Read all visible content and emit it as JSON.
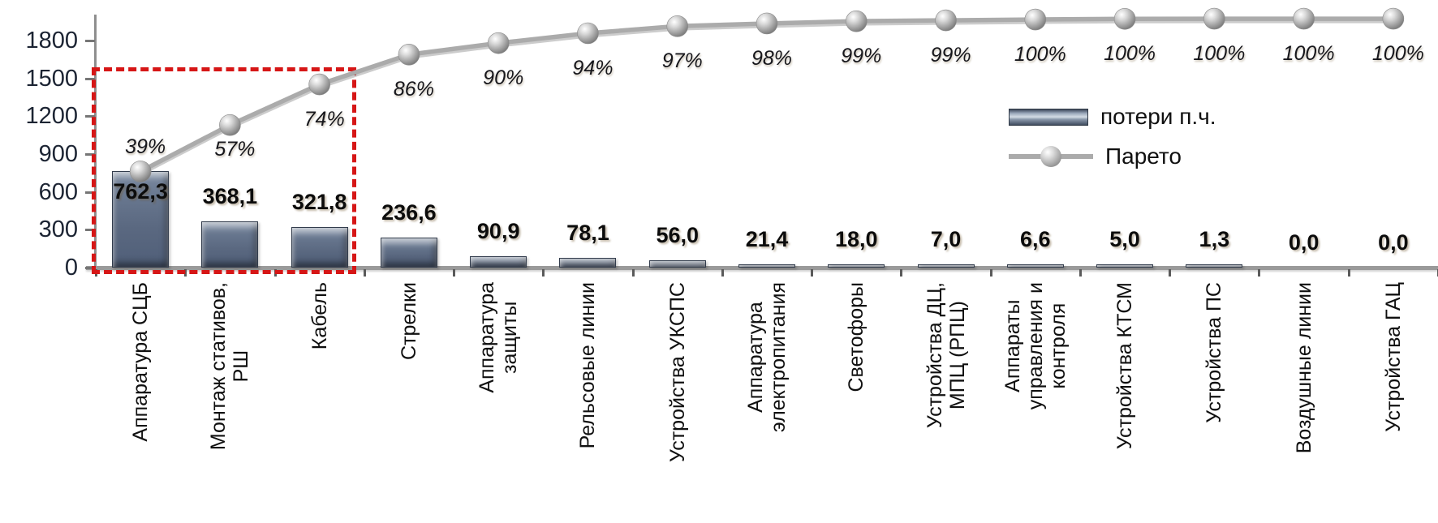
{
  "chart_data": {
    "type": "bar",
    "subtype": "pareto",
    "title": "",
    "xlabel": "",
    "ylabel": "",
    "categories": [
      "Аппаратура СЦБ",
      "Монтаж стативов, РШ",
      "Кабель",
      "Стрелки",
      "Аппаратура защиты",
      "Рельсовые линии",
      "Устройства УКСПС",
      "Аппаратура электропитания",
      "Светофоры",
      "Устройства ДЦ, МПЦ (РПЦ)",
      "Аппараты управления и контроля",
      "Устройства КТСМ",
      "Устройства ПС",
      "Воздушные линии",
      "Устройства ГАЦ"
    ],
    "category_label_lines": [
      [
        "Аппаратура СЦБ"
      ],
      [
        "Монтаж стативов,",
        "РШ"
      ],
      [
        "Кабель"
      ],
      [
        "Стрелки"
      ],
      [
        "Аппаратура",
        "защиты"
      ],
      [
        "Рельсовые линии"
      ],
      [
        "Устройства УКСПС"
      ],
      [
        "Аппаратура",
        "электропитания"
      ],
      [
        "Светофоры"
      ],
      [
        "Устройства ДЦ,",
        "МПЦ (РПЦ)"
      ],
      [
        "Аппараты",
        "управления и",
        "контроля"
      ],
      [
        "Устройства КТСМ"
      ],
      [
        "Устройства ПС"
      ],
      [
        "Воздушные линии"
      ],
      [
        "Устройства ГАЦ"
      ]
    ],
    "series": [
      {
        "name": "потери п.ч.",
        "type": "bar",
        "values": [
          762.3,
          368.1,
          321.8,
          236.6,
          90.9,
          78.1,
          56.0,
          21.4,
          18.0,
          7.0,
          6.6,
          5.0,
          1.3,
          0.0,
          0.0
        ],
        "value_labels": [
          "762,3",
          "368,1",
          "321,8",
          "236,6",
          "90,9",
          "78,1",
          "56,0",
          "21,4",
          "18,0",
          "7,0",
          "6,6",
          "5,0",
          "1,3",
          "0,0",
          "0,0"
        ]
      },
      {
        "name": "Парето",
        "type": "line",
        "percent_labels": [
          "39%",
          "57%",
          "74%",
          "86%",
          "90%",
          "94%",
          "97%",
          "98%",
          "99%",
          "99%",
          "100%",
          "100%",
          "100%",
          "100%",
          "100%"
        ]
      }
    ],
    "y_axis": {
      "min": 0,
      "max": 1800,
      "ticks": [
        0,
        300,
        600,
        900,
        1200,
        1500,
        1800
      ]
    },
    "grid": false,
    "legend": {
      "position": "center-right",
      "items": [
        "потери п.ч.",
        "Парето"
      ]
    },
    "annotations": {
      "highlight_box_categories": [
        "Аппаратура СЦБ",
        "Монтаж стативов, РШ",
        "Кабель"
      ]
    },
    "colors": {
      "bar_fill": "#5f6d83",
      "bar_edge": "#323c4c",
      "line": "#ababab",
      "marker": "#b5b5b5",
      "highlight_box": "#d61616",
      "text": "#101010"
    }
  }
}
